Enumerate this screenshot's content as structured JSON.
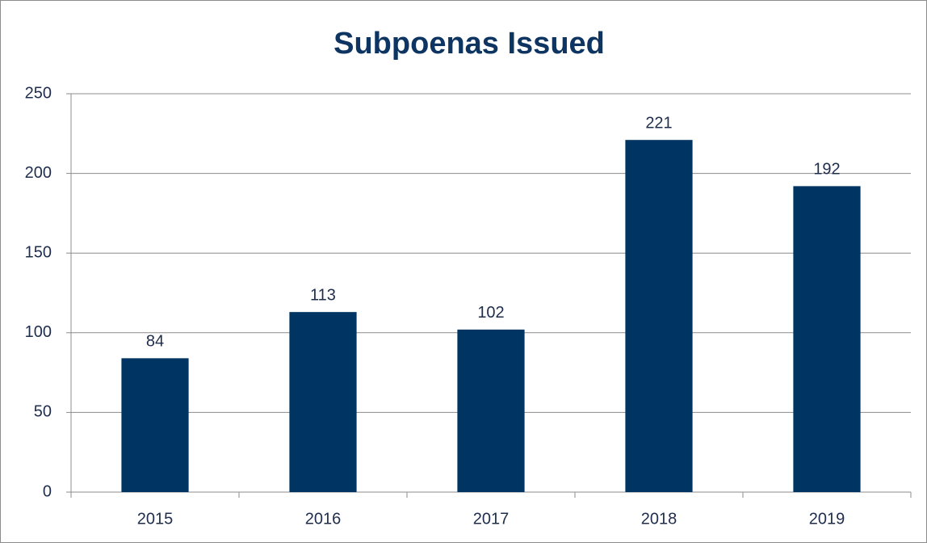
{
  "chart_data": {
    "type": "bar",
    "title": "Subpoenas Issued",
    "categories": [
      "2015",
      "2016",
      "2017",
      "2018",
      "2019"
    ],
    "values": [
      84,
      113,
      102,
      221,
      192
    ],
    "color": "#003462",
    "ylim": [
      0,
      250
    ],
    "yticks": [
      0,
      50,
      100,
      150,
      200,
      250
    ],
    "grid": true
  }
}
